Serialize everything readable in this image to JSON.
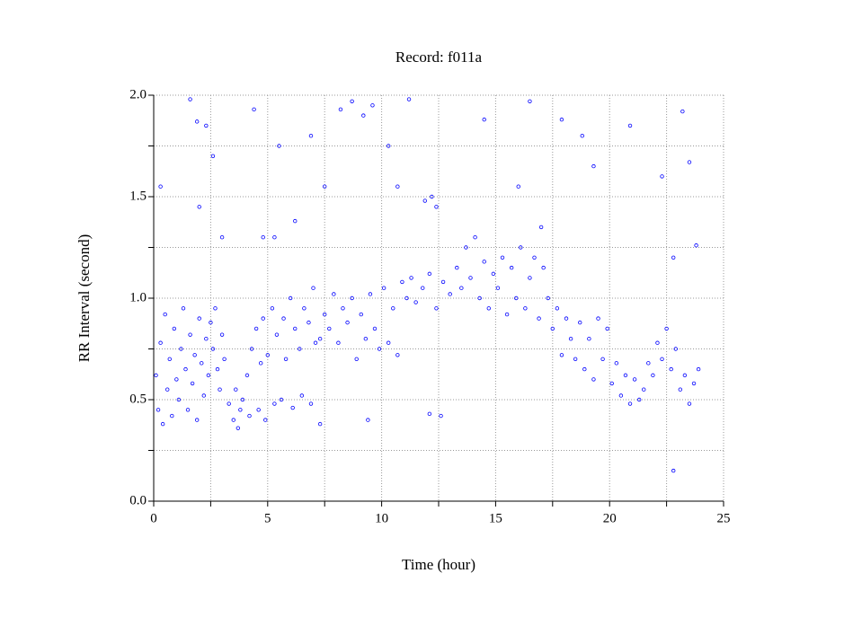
{
  "chart_data": {
    "type": "scatter",
    "title": "Record:  f011a",
    "x_label": "Time (hour)",
    "y_label": "RR Interval (second)",
    "color": "#0000ff",
    "grid": true,
    "xlim": [
      0,
      25
    ],
    "xticks": [
      0,
      5,
      10,
      15,
      20,
      25
    ],
    "xminorticks": [
      2.5,
      7.5,
      12.5,
      17.5,
      22.5
    ],
    "ylim": [
      0,
      2
    ],
    "yticks": [
      {
        "value": 0,
        "label": "0.0"
      },
      {
        "value": 0.5,
        "label": "0.5"
      },
      {
        "value": 1,
        "label": "1.0"
      },
      {
        "value": 1.5,
        "label": "1.5"
      },
      {
        "value": 2,
        "label": "2.0"
      }
    ],
    "yminorticks": [
      0.25,
      0.75,
      1.25,
      1.75
    ],
    "x": [
      0.1,
      0.2,
      0.3,
      0.4,
      0.5,
      0.6,
      0.7,
      0.8,
      0.9,
      1.0,
      1.1,
      1.2,
      1.3,
      1.4,
      1.5,
      1.6,
      1.7,
      1.8,
      1.9,
      2.0,
      2.1,
      2.2,
      2.3,
      2.4,
      2.5,
      2.6,
      2.7,
      2.8,
      2.9,
      3.0,
      3.1,
      3.3,
      3.5,
      3.6,
      3.7,
      3.8,
      3.9,
      4.1,
      4.2,
      4.3,
      4.5,
      4.6,
      4.7,
      4.8,
      4.9,
      5.0,
      5.2,
      5.3,
      5.4,
      5.6,
      5.7,
      5.8,
      6.0,
      6.1,
      6.2,
      6.4,
      6.5,
      6.6,
      6.8,
      6.9,
      7.0,
      7.1,
      7.3,
      7.5,
      7.7,
      7.9,
      8.1,
      8.3,
      8.5,
      8.7,
      8.9,
      9.1,
      9.3,
      9.5,
      9.7,
      9.9,
      10.1,
      10.3,
      10.5,
      10.7,
      10.9,
      11.1,
      11.3,
      11.5,
      11.8,
      12.1,
      12.4,
      12.7,
      13.0,
      13.3,
      13.5,
      13.7,
      13.9,
      14.1,
      14.3,
      14.5,
      14.7,
      14.9,
      15.1,
      15.3,
      15.5,
      15.7,
      15.9,
      16.1,
      16.3,
      16.5,
      16.7,
      16.9,
      17.1,
      17.3,
      17.5,
      17.7,
      17.9,
      18.1,
      18.3,
      18.5,
      18.7,
      18.9,
      19.1,
      19.3,
      19.5,
      19.7,
      19.9,
      20.1,
      20.3,
      20.5,
      20.7,
      20.9,
      21.1,
      21.3,
      21.5,
      21.7,
      21.9,
      22.1,
      22.3,
      22.5,
      22.7,
      22.9,
      23.1,
      23.3,
      23.5,
      23.7,
      23.9,
      1.6,
      1.9,
      2.3,
      0.3,
      2.6,
      4.4,
      4.8,
      5.5,
      6.2,
      6.9,
      7.5,
      8.2,
      8.7,
      9.2,
      9.6,
      10.3,
      10.7,
      11.2,
      11.9,
      12.2,
      12.4,
      12.1,
      12.6,
      9.4,
      7.3,
      14.5,
      16.5,
      17.9,
      18.8,
      19.3,
      20.9,
      22.3,
      22.8,
      23.2,
      23.5,
      23.8,
      22.8,
      2.0,
      3.0,
      5.3,
      16.0,
      17.0
    ],
    "values": [
      0.62,
      0.45,
      0.78,
      0.38,
      0.92,
      0.55,
      0.7,
      0.42,
      0.85,
      0.6,
      0.5,
      0.75,
      0.95,
      0.65,
      0.45,
      0.82,
      0.58,
      0.72,
      0.4,
      0.9,
      0.68,
      0.52,
      0.8,
      0.62,
      0.88,
      0.75,
      0.95,
      0.65,
      0.55,
      0.82,
      0.7,
      0.48,
      0.4,
      0.55,
      0.36,
      0.45,
      0.5,
      0.62,
      0.42,
      0.75,
      0.85,
      0.45,
      0.68,
      0.9,
      0.4,
      0.72,
      0.95,
      0.48,
      0.82,
      0.5,
      0.9,
      0.7,
      1.0,
      0.46,
      0.85,
      0.75,
      0.52,
      0.95,
      0.88,
      0.48,
      1.05,
      0.78,
      0.8,
      0.92,
      0.85,
      1.02,
      0.78,
      0.95,
      0.88,
      1.0,
      0.7,
      0.92,
      0.8,
      1.02,
      0.85,
      0.75,
      1.05,
      0.78,
      0.95,
      0.72,
      1.08,
      1.0,
      1.1,
      0.98,
      1.05,
      1.12,
      0.95,
      1.08,
      1.02,
      1.15,
      1.05,
      1.25,
      1.1,
      1.3,
      1.0,
      1.18,
      0.95,
      1.12,
      1.05,
      1.2,
      0.92,
      1.15,
      1.0,
      1.25,
      0.95,
      1.1,
      1.2,
      0.9,
      1.15,
      1.0,
      0.85,
      0.95,
      0.72,
      0.9,
      0.8,
      0.7,
      0.88,
      0.65,
      0.8,
      0.6,
      0.9,
      0.7,
      0.85,
      0.58,
      0.68,
      0.52,
      0.62,
      0.48,
      0.6,
      0.5,
      0.55,
      0.68,
      0.62,
      0.78,
      0.7,
      0.85,
      0.65,
      0.75,
      0.55,
      0.62,
      0.48,
      0.58,
      0.65,
      1.98,
      1.87,
      1.85,
      1.55,
      1.7,
      1.93,
      1.3,
      1.75,
      1.38,
      1.8,
      1.55,
      1.93,
      1.97,
      1.9,
      1.95,
      1.75,
      1.55,
      1.98,
      1.48,
      1.5,
      1.45,
      0.43,
      0.42,
      0.4,
      0.38,
      1.88,
      1.97,
      1.88,
      1.8,
      1.65,
      1.85,
      1.6,
      1.2,
      1.92,
      1.67,
      1.26,
      0.15,
      1.45,
      1.3,
      1.3,
      1.55,
      1.35
    ]
  }
}
